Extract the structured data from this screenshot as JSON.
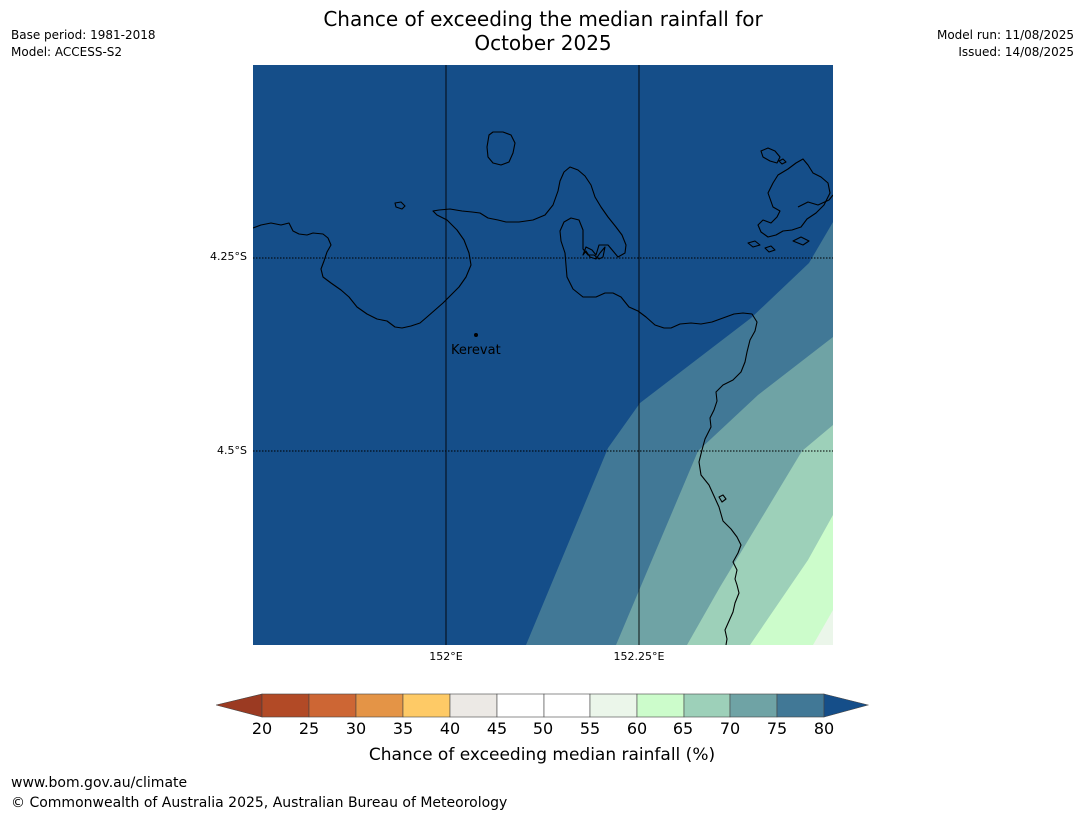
{
  "title": {
    "line1": "Chance of exceeding the median rainfall for",
    "line2": "October 2025"
  },
  "meta_left": {
    "base_period": "Base period: 1981-2018",
    "model": "Model: ACCESS-S2"
  },
  "meta_right": {
    "model_run": "Model run: 11/08/2025",
    "issued": "Issued: 14/08/2025"
  },
  "map": {
    "latitude_labels": [
      "4.25°S",
      "4.5°S"
    ],
    "longitude_labels": [
      "152°E",
      "152.25°E"
    ],
    "place": "Kerevat",
    "zones": [
      {
        "range": "> 80",
        "color": "#154e89"
      },
      {
        "range": "75-80",
        "color": "#417896"
      },
      {
        "range": "70-75",
        "color": "#6fa3a5"
      },
      {
        "range": "65-70",
        "color": "#9dd0b9"
      },
      {
        "range": "60-65",
        "color": "#ccfccb"
      },
      {
        "range": "55-60",
        "color": "#ebf6ea"
      }
    ]
  },
  "colorbar": {
    "title": "Chance of exceeding median rainfall (%)",
    "ticks": [
      "20",
      "25",
      "30",
      "35",
      "40",
      "45",
      "50",
      "55",
      "60",
      "65",
      "70",
      "75",
      "80"
    ],
    "colors": {
      "below_20": "#9b3a22",
      "20_25": "#b24a26",
      "25_30": "#cd6634",
      "30_35": "#e49446",
      "35_40": "#feca66",
      "40_45": "#ece9e5",
      "45_50": "#ffffff",
      "50_55": "#ffffff",
      "55_60": "#ebf6ea",
      "60_65": "#ccfccb",
      "65_70": "#9dd0b9",
      "70_75": "#6fa3a5",
      "75_80": "#417896",
      "above_80": "#154e89"
    }
  },
  "footer": {
    "url": "www.bom.gov.au/climate",
    "copyright": "© Commonwealth of Australia 2025, Australian Bureau of Meteorology"
  }
}
